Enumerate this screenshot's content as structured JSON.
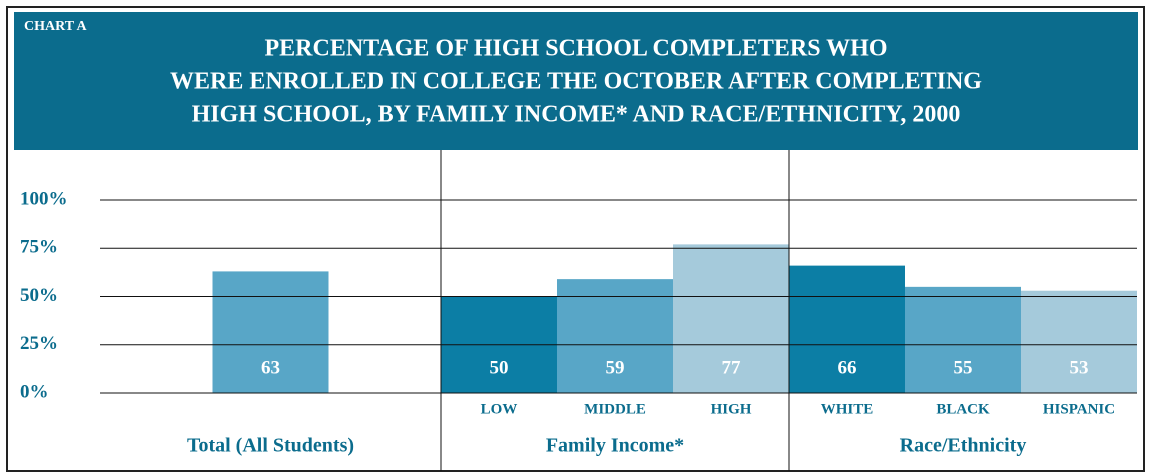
{
  "chart_data": {
    "type": "bar",
    "label": "CHART A",
    "title": [
      "PERCENTAGE OF HIGH SCHOOL COMPLETERS WHO",
      "WERE ENROLLED IN COLLEGE THE OCTOBER AFTER COMPLETING",
      "HIGH SCHOOL, BY FAMILY INCOME* AND RACE/ETHNICITY, 2000"
    ],
    "ylim": [
      0,
      100
    ],
    "yticks": [
      {
        "value": 0,
        "label": "0%"
      },
      {
        "value": 25,
        "label": "25%"
      },
      {
        "value": 50,
        "label": "50%"
      },
      {
        "value": 75,
        "label": "75%"
      },
      {
        "value": 100,
        "label": "100%"
      }
    ],
    "grid": true,
    "groups": [
      {
        "name": "Total (All Students)",
        "categories": [
          null
        ],
        "values": [
          63
        ],
        "colors": [
          "#58a6c7"
        ]
      },
      {
        "name": "Family Income*",
        "categories": [
          "LOW",
          "MIDDLE",
          "HIGH"
        ],
        "values": [
          50,
          59,
          77
        ],
        "colors": [
          "#0c7ea5",
          "#58a6c7",
          "#a5cadb"
        ]
      },
      {
        "name": "Race/Ethnicity",
        "categories": [
          "WHITE",
          "BLACK",
          "HISPANIC"
        ],
        "values": [
          66,
          55,
          53
        ],
        "colors": [
          "#0c7ea5",
          "#58a6c7",
          "#a5cadb"
        ]
      }
    ]
  }
}
